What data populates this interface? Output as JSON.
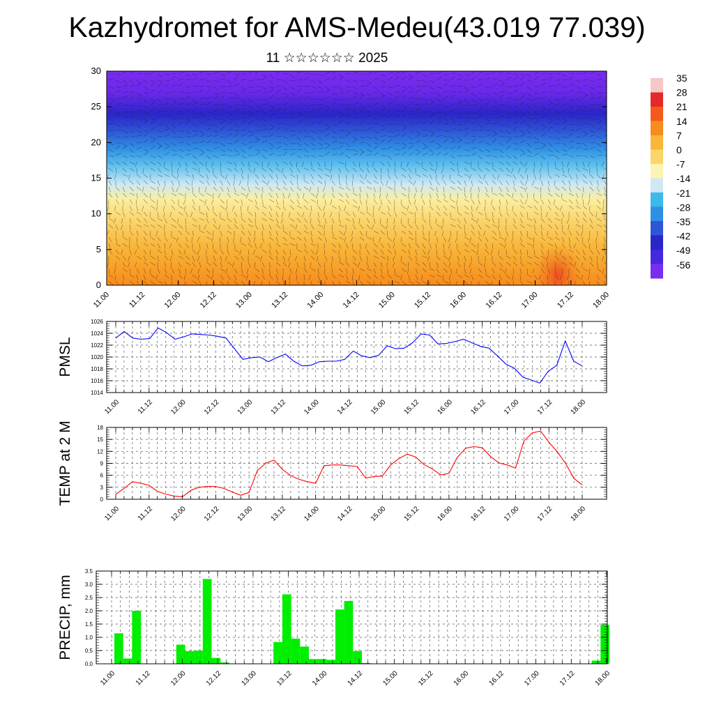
{
  "header": {
    "title": "Kazhydromet for AMS-Medeu(43.019 77.039)",
    "subtitle": "11 ☆☆☆☆☆☆ 2025"
  },
  "colorbar": {
    "labels": [
      "35",
      "28",
      "21",
      "14",
      "7",
      "0",
      "-7",
      "-14",
      "-21",
      "-28",
      "-35",
      "-42",
      "-49",
      "-56"
    ],
    "colors": [
      "#f7c6c6",
      "#e5282a",
      "#f45a1c",
      "#f78b1e",
      "#f9b63a",
      "#fbd46a",
      "#fdf4b2",
      "#cfe8f3",
      "#3eb9ea",
      "#2f8fe4",
      "#2f55d8",
      "#2a26c8",
      "#4527e0",
      "#7a2cf0"
    ]
  },
  "chart_data": [
    {
      "type": "heatmap",
      "title": "",
      "xlabel": "",
      "ylabel": "",
      "ylim": [
        0,
        30
      ],
      "yticks": [
        0,
        5,
        10,
        15,
        20,
        25,
        30
      ],
      "x_tick_labels": [
        "11.00",
        "11.12",
        "12.00",
        "12.12",
        "13.00",
        "13.12",
        "14.00",
        "14.12",
        "15.00",
        "15.12",
        "16.00",
        "16.12",
        "17.00",
        "17.12",
        "18.00"
      ],
      "color_range": [
        -56,
        35
      ],
      "grid": false,
      "overlay": "wind barbs"
    },
    {
      "type": "line",
      "ylabel": "PMSL",
      "ylim": [
        1014,
        1026
      ],
      "yticks": [
        1014,
        1016,
        1018,
        1020,
        1022,
        1024,
        1026
      ],
      "x_tick_labels": [
        "11.00",
        "11.12",
        "12.00",
        "12.12",
        "13.00",
        "13.12",
        "14.00",
        "14.12",
        "15.00",
        "15.12",
        "16.00",
        "16.12",
        "17.00",
        "17.12",
        "18.00"
      ],
      "grid": true,
      "color": "#0000ff",
      "values": [
        1023.2,
        1024.3,
        1023.2,
        1023.0,
        1023.1,
        1024.9,
        1024.1,
        1023.0,
        1023.4,
        1023.9,
        1023.8,
        1023.7,
        1023.5,
        1023.2,
        1021.4,
        1019.6,
        1019.9,
        1020.0,
        1019.2,
        1019.9,
        1020.5,
        1019.3,
        1018.5,
        1018.6,
        1019.2,
        1019.3,
        1019.3,
        1019.6,
        1021.0,
        1020.2,
        1019.9,
        1020.3,
        1021.9,
        1021.4,
        1021.5,
        1022.4,
        1023.9,
        1023.7,
        1022.2,
        1022.3,
        1022.6,
        1023.0,
        1022.4,
        1021.8,
        1021.5,
        1020.2,
        1018.8,
        1018.1,
        1016.6,
        1016.1,
        1015.6,
        1017.6,
        1018.6,
        1022.7,
        1019.3,
        1018.5
      ]
    },
    {
      "type": "line",
      "ylabel": "TEMP at 2 M",
      "ylim": [
        0,
        18
      ],
      "yticks": [
        0,
        3,
        6,
        9,
        12,
        15,
        18
      ],
      "x_tick_labels": [
        "11.00",
        "11.12",
        "12.00",
        "12.12",
        "13.00",
        "13.12",
        "14.00",
        "14.12",
        "15.00",
        "15.12",
        "16.00",
        "16.12",
        "17.00",
        "17.12",
        "18.00"
      ],
      "grid": true,
      "color": "#ff0000",
      "values": [
        1.2,
        2.7,
        4.4,
        4.0,
        3.5,
        2.0,
        1.3,
        0.8,
        0.6,
        2.2,
        3.0,
        3.2,
        3.2,
        2.7,
        1.8,
        1.0,
        1.7,
        7.2,
        9.0,
        9.8,
        7.5,
        5.9,
        5.0,
        4.4,
        4.0,
        8.4,
        8.6,
        8.6,
        8.4,
        8.2,
        5.3,
        5.7,
        5.8,
        8.6,
        10.2,
        11.3,
        10.6,
        8.7,
        7.6,
        6.1,
        6.5,
        10.5,
        12.8,
        13.2,
        12.9,
        10.7,
        9.1,
        8.6,
        7.8,
        14.6,
        16.6,
        17.1,
        14.3,
        11.9,
        9.0,
        5.2,
        3.6
      ]
    },
    {
      "type": "bar",
      "ylabel": "PRECIP, mm",
      "ylim": [
        0,
        3.5
      ],
      "yticks": [
        0.0,
        0.5,
        1.0,
        1.5,
        2.0,
        2.5,
        3.0,
        3.5
      ],
      "yticklabels": [
        "0.0",
        "0.5",
        "1.0",
        "1.5",
        "2.0",
        "2.5",
        "3.0",
        "3.5"
      ],
      "x_tick_labels": [
        "11.00",
        "11.12",
        "12.00",
        "12.12",
        "13.00",
        "13.12",
        "14.00",
        "14.12",
        "15.00",
        "15.12",
        "16.00",
        "16.12",
        "17.00",
        "17.12",
        "18.00"
      ],
      "grid": true,
      "color": "#00ee00",
      "values": [
        1.15,
        0.2,
        2.0,
        0,
        0,
        0,
        0,
        0.72,
        0.48,
        0.5,
        3.2,
        0.22,
        0.05,
        0,
        0,
        0,
        0,
        0,
        0.82,
        2.62,
        0.95,
        0.65,
        0.18,
        0.18,
        0.15,
        2.05,
        2.37,
        0.48,
        0.03,
        0,
        0,
        0,
        0,
        0,
        0,
        0,
        0,
        0,
        0,
        0,
        0,
        0,
        0,
        0,
        0,
        0,
        0,
        0,
        0,
        0,
        0,
        0,
        0,
        0,
        0.12,
        1.47
      ]
    }
  ]
}
